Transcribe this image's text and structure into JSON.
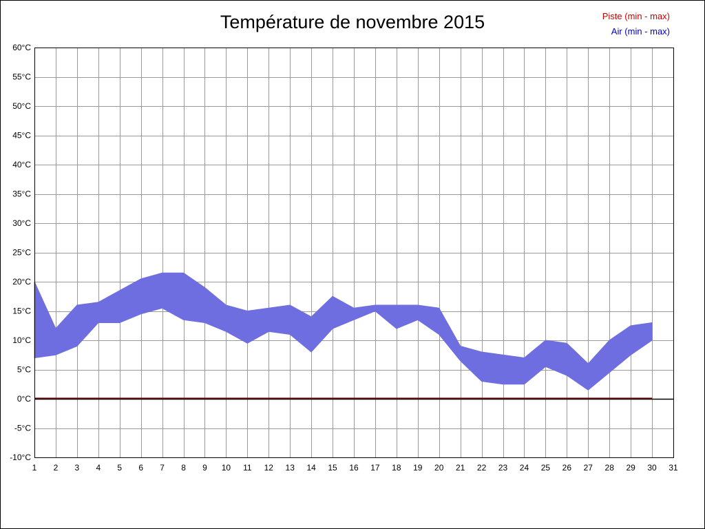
{
  "title": "Température de novembre 2015",
  "legend": {
    "piste": {
      "label": "Piste (min - max)",
      "color": "#cc0000"
    },
    "air": {
      "label": "Air (min - max)",
      "color": "#0000cc"
    }
  },
  "chart_data": {
    "type": "area",
    "title": "Température de novembre 2015",
    "xlabel": "",
    "ylabel": "",
    "y_unit": "°C",
    "ylim": [
      -10,
      60
    ],
    "ytick_step": 5,
    "grid": true,
    "legend_position": "top-right",
    "x_ticks": [
      "1",
      "2",
      "3",
      "4",
      "5",
      "6",
      "7",
      "8",
      "9",
      "10",
      "11",
      "12",
      "13",
      "14",
      "15",
      "16",
      "17",
      "18",
      "19",
      "20",
      "21",
      "22",
      "23",
      "24",
      "25",
      "26",
      "27",
      "28",
      "29",
      "30",
      "31"
    ],
    "y_ticks": [
      "60°C",
      "55°C",
      "50°C",
      "45°C",
      "40°C",
      "35°C",
      "30°C",
      "25°C",
      "20°C",
      "15°C",
      "10°C",
      "5°C",
      "0°C",
      "-5°C",
      "-10°C"
    ],
    "x": [
      1,
      2,
      3,
      4,
      5,
      6,
      7,
      8,
      9,
      10,
      11,
      12,
      13,
      14,
      15,
      16,
      17,
      18,
      19,
      20,
      21,
      22,
      23,
      24,
      25,
      26,
      27,
      28,
      29,
      30
    ],
    "series": [
      {
        "name": "Air (min - max)",
        "band": true,
        "color": "#6e6ee0",
        "min": [
          7,
          7.5,
          9,
          13,
          13,
          14.5,
          15.5,
          13.5,
          13,
          11.5,
          9.5,
          11.5,
          11,
          8,
          12,
          13.5,
          15,
          12,
          13.5,
          11,
          6.5,
          3,
          2.5,
          2.5,
          5.5,
          4,
          1.5,
          4.5,
          7.5,
          10
        ],
        "max": [
          20,
          12,
          16,
          16.5,
          18.5,
          20.5,
          21.5,
          21.5,
          19,
          16,
          15,
          15.5,
          16,
          14,
          17.5,
          15.5,
          16,
          16,
          16,
          15.5,
          9,
          8,
          7.5,
          7,
          10,
          9.5,
          6,
          10,
          12.5,
          13
        ]
      },
      {
        "name": "Piste (min - max)",
        "band": true,
        "color": "#800000",
        "min": [
          0,
          0,
          0,
          0,
          0,
          0,
          0,
          0,
          0,
          0,
          0,
          0,
          0,
          0,
          0,
          0,
          0,
          0,
          0,
          0,
          0,
          0,
          0,
          0,
          0,
          0,
          0,
          0,
          0,
          0
        ],
        "max": [
          0,
          0,
          0,
          0,
          0,
          0,
          0,
          0,
          0,
          0,
          0,
          0,
          0,
          0,
          0,
          0,
          0,
          0,
          0,
          0,
          0,
          0,
          0,
          0,
          0,
          0,
          0,
          0,
          0,
          0
        ]
      }
    ],
    "zero_line": true
  }
}
